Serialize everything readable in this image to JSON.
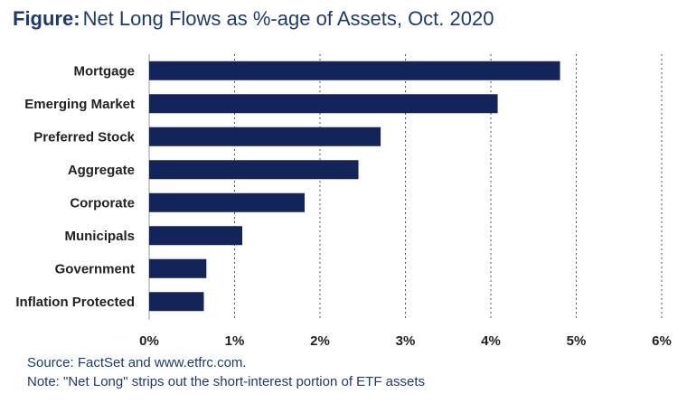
{
  "title": {
    "lead": "Figure:",
    "text": "Net Long Flows as %-age of Assets, Oct. 2020"
  },
  "footer": {
    "source": "Source: FactSet and www.etfrc.com.",
    "note": "Note: \"Net Long\" strips out the short-interest portion of ETF assets"
  },
  "colors": {
    "bar": "#13245a",
    "title": "#1f3a6e",
    "grid": "#555555",
    "axis": "#999999"
  },
  "chart_data": {
    "type": "bar",
    "orientation": "horizontal",
    "categories": [
      "Mortgage",
      "Emerging Market",
      "Preferred Stock",
      "Aggregate",
      "Corporate",
      "Municipals",
      "Government",
      "Inflation Protected"
    ],
    "values": [
      4.81,
      4.08,
      2.71,
      2.45,
      1.82,
      1.09,
      0.67,
      0.64
    ],
    "unit": "%",
    "xlim": [
      0,
      6
    ],
    "xticks": [
      "0%",
      "1%",
      "2%",
      "3%",
      "4%",
      "5%",
      "6%"
    ],
    "grid": "vertical dashed",
    "legend": "none"
  }
}
